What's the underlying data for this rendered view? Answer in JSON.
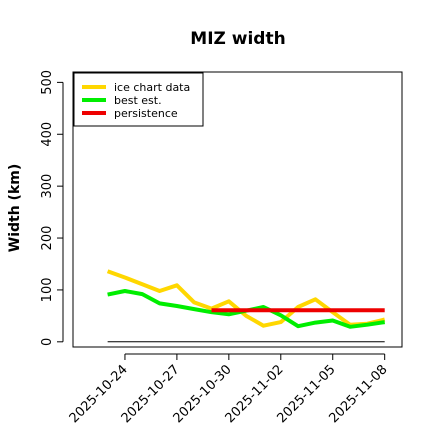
{
  "chart_data": {
    "type": "line",
    "title": "MIZ width",
    "xlabel": "",
    "ylabel": "Width (km)",
    "ylim": [
      -10,
      520
    ],
    "yticks": [
      0,
      100,
      200,
      300,
      400,
      500
    ],
    "xlim": [
      "2025-10-21",
      "2025-11-09"
    ],
    "xticks": [
      "2025-10-24",
      "2025-10-27",
      "2025-10-30",
      "2025-11-02",
      "2025-11-05",
      "2025-11-08"
    ],
    "grid": false,
    "legend_position": "top-left",
    "reference_line": {
      "y": 0,
      "from": "2025-10-23",
      "to": "2025-11-08",
      "color": "#000000"
    },
    "series": [
      {
        "name": "ice chart data",
        "color": "#FFD700",
        "x": [
          "2025-10-23",
          "2025-10-24",
          "2025-10-25",
          "2025-10-26",
          "2025-10-27",
          "2025-10-28",
          "2025-10-29",
          "2025-10-30",
          "2025-10-31",
          "2025-11-01",
          "2025-11-02",
          "2025-11-03",
          "2025-11-04",
          "2025-11-05",
          "2025-11-06",
          "2025-11-07",
          "2025-11-08"
        ],
        "values": [
          136,
          124,
          111,
          98,
          109,
          76,
          64,
          78,
          50,
          31,
          38,
          67,
          82,
          57,
          33,
          35,
          43
        ]
      },
      {
        "name": "best est.",
        "color": "#00EE00",
        "x": [
          "2025-10-23",
          "2025-10-24",
          "2025-10-25",
          "2025-10-26",
          "2025-10-27",
          "2025-10-28",
          "2025-10-29",
          "2025-10-30",
          "2025-10-31",
          "2025-11-01",
          "2025-11-02",
          "2025-11-03",
          "2025-11-04",
          "2025-11-05",
          "2025-11-06",
          "2025-11-07",
          "2025-11-08"
        ],
        "values": [
          91,
          98,
          92,
          74,
          69,
          63,
          57,
          53,
          60,
          67,
          51,
          30,
          37,
          41,
          29,
          33,
          38
        ]
      },
      {
        "name": "persistence",
        "color": "#EE0000",
        "x": [
          "2025-10-29",
          "2025-11-08"
        ],
        "values": [
          61,
          61
        ]
      }
    ]
  }
}
